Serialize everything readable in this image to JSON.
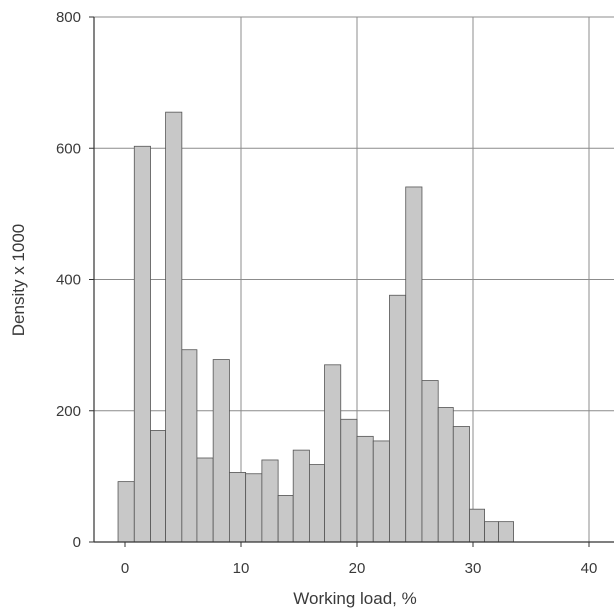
{
  "chart_data": {
    "type": "bar",
    "title": "",
    "xlabel": "Working load, %",
    "ylabel": "Density x 1000",
    "xlim": [
      -3,
      42
    ],
    "ylim": [
      0,
      800
    ],
    "xticks": [
      0,
      10,
      20,
      30,
      40
    ],
    "yticks": [
      0,
      200,
      400,
      600,
      800
    ],
    "grid": true,
    "bar_color": "#c8c8c8",
    "bar_edge_color": "#555555",
    "bins": [
      {
        "x0": -0.6,
        "x1": 0.8,
        "value": 92
      },
      {
        "x0": 0.8,
        "x1": 2.2,
        "value": 603
      },
      {
        "x0": 2.2,
        "x1": 3.5,
        "value": 170
      },
      {
        "x0": 3.5,
        "x1": 4.9,
        "value": 655
      },
      {
        "x0": 4.9,
        "x1": 6.2,
        "value": 293
      },
      {
        "x0": 6.2,
        "x1": 7.6,
        "value": 128
      },
      {
        "x0": 7.6,
        "x1": 9.0,
        "value": 278
      },
      {
        "x0": 9.0,
        "x1": 10.4,
        "value": 106
      },
      {
        "x0": 10.4,
        "x1": 11.8,
        "value": 104
      },
      {
        "x0": 11.8,
        "x1": 13.2,
        "value": 125
      },
      {
        "x0": 13.2,
        "x1": 14.5,
        "value": 71
      },
      {
        "x0": 14.5,
        "x1": 15.9,
        "value": 140
      },
      {
        "x0": 15.9,
        "x1": 17.2,
        "value": 118
      },
      {
        "x0": 17.2,
        "x1": 18.6,
        "value": 270
      },
      {
        "x0": 18.6,
        "x1": 20.0,
        "value": 187
      },
      {
        "x0": 20.0,
        "x1": 21.4,
        "value": 161
      },
      {
        "x0": 21.4,
        "x1": 22.8,
        "value": 154
      },
      {
        "x0": 22.8,
        "x1": 24.2,
        "value": 376
      },
      {
        "x0": 24.2,
        "x1": 25.6,
        "value": 541
      },
      {
        "x0": 25.6,
        "x1": 27.0,
        "value": 246
      },
      {
        "x0": 27.0,
        "x1": 28.3,
        "value": 205
      },
      {
        "x0": 28.3,
        "x1": 29.7,
        "value": 176
      },
      {
        "x0": 29.7,
        "x1": 31.0,
        "value": 50
      },
      {
        "x0": 31.0,
        "x1": 32.2,
        "value": 31
      },
      {
        "x0": 32.2,
        "x1": 33.5,
        "value": 31
      }
    ]
  }
}
